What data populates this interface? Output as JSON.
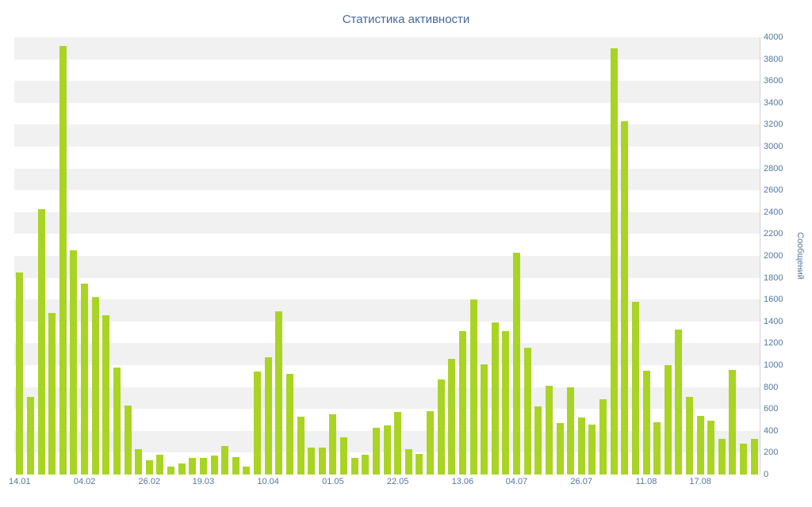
{
  "chart_data": {
    "type": "bar",
    "title": "Статистика активности",
    "ylabel": "Сообщений",
    "xlabel": "",
    "ylim": [
      0,
      4000
    ],
    "y_ticks": [
      0,
      200,
      400,
      600,
      800,
      1000,
      1200,
      1400,
      1600,
      1800,
      2000,
      2200,
      2400,
      2600,
      2800,
      3000,
      3200,
      3400,
      3600,
      3800,
      4000
    ],
    "x_labels": [
      "14.01",
      "04.02",
      "26.02",
      "19.03",
      "10.04",
      "01.05",
      "22.05",
      "13.06",
      "04.07",
      "26.07",
      "11.08",
      "17.08"
    ],
    "x_label_indices": [
      0,
      6,
      12,
      17,
      23,
      29,
      35,
      41,
      46,
      52,
      58,
      63
    ],
    "values": [
      1850,
      710,
      2430,
      1480,
      3920,
      2050,
      1750,
      1620,
      1460,
      980,
      630,
      230,
      130,
      180,
      70,
      100,
      150,
      150,
      175,
      260,
      160,
      70,
      940,
      1070,
      1490,
      920,
      530,
      250,
      250,
      550,
      340,
      150,
      180,
      430,
      450,
      570,
      230,
      190,
      580,
      870,
      1060,
      1310,
      1600,
      1010,
      1390,
      1310,
      2030,
      1160,
      620,
      810,
      470,
      800,
      520,
      460,
      690,
      3900,
      3230,
      1580,
      950,
      480,
      1000,
      1330,
      710,
      540,
      490,
      330,
      960,
      280,
      330
    ],
    "grid": "alternating horizontal bands every 200 units",
    "legend": "none",
    "colors": {
      "bar": "#a9d424",
      "band": "#f1f1f2",
      "background": "#ffffff",
      "title_text": "#46699c",
      "axis_text": "#54779f",
      "axis_line": "#ccd3db"
    }
  }
}
